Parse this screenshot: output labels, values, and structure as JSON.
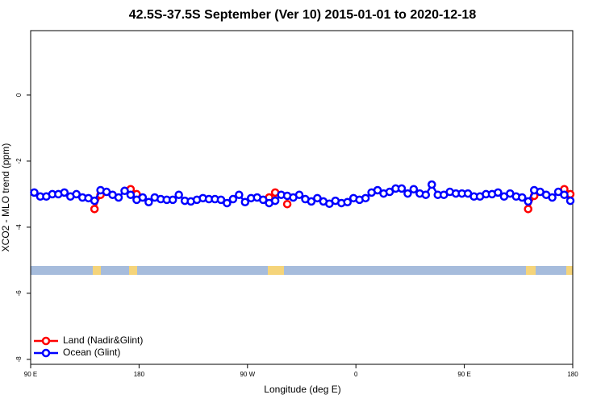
{
  "chart_data": {
    "type": "line",
    "title": "42.5S-37.5S September (Ver 10)   2015-01-01 to 2020-12-18",
    "x_label": "Longitude (deg E)",
    "y_label": "XCO2 - MLO trend (ppm)",
    "xlim": [
      90,
      540
    ],
    "ylim": [
      -8.15,
      1.95
    ],
    "xticks": [
      {
        "value": 90,
        "label": "90 E"
      },
      {
        "value": 180,
        "label": "180"
      },
      {
        "value": 270,
        "label": "90 W"
      },
      {
        "value": 360,
        "label": "0"
      },
      {
        "value": 450,
        "label": "90 E"
      },
      {
        "value": 540,
        "label": "180"
      }
    ],
    "yticks": [
      0,
      -2,
      -4,
      -6,
      -8
    ],
    "legend": "bottom-left",
    "series": [
      {
        "name": "Land (Nadir&Glint)",
        "color": "#ff0000",
        "x": [
          143,
          148,
          null,
          173,
          178,
          null,
          288,
          293,
          null,
          303,
          null,
          503,
          508,
          null,
          533,
          538
        ],
        "values": [
          -3.45,
          -3.02,
          null,
          -2.85,
          -3.0,
          null,
          -3.1,
          -2.95,
          null,
          -3.3,
          null,
          -3.45,
          -3.05,
          null,
          -2.85,
          -3.0
        ]
      },
      {
        "name": "Ocean (Glint)",
        "color": "#0000ff",
        "x": [
          93,
          98,
          103,
          108,
          113,
          118,
          123,
          128,
          133,
          138,
          143,
          148,
          153,
          158,
          163,
          168,
          173,
          178,
          183,
          188,
          193,
          198,
          203,
          208,
          213,
          218,
          223,
          228,
          233,
          238,
          243,
          248,
          253,
          258,
          263,
          268,
          273,
          278,
          283,
          288,
          293,
          298,
          303,
          308,
          313,
          318,
          323,
          328,
          333,
          338,
          343,
          348,
          353,
          358,
          363,
          368,
          373,
          378,
          383,
          388,
          393,
          398,
          403,
          408,
          413,
          418,
          423,
          428,
          433,
          438,
          443,
          448,
          453,
          458,
          463,
          468,
          473,
          478,
          483,
          488,
          493,
          498,
          503,
          508,
          513,
          518,
          523,
          528,
          533,
          538
        ],
        "values": [
          -2.95,
          -3.07,
          -3.07,
          -3.0,
          -3.0,
          -2.95,
          -3.07,
          -3.0,
          -3.1,
          -3.12,
          -3.2,
          -2.88,
          -2.93,
          -3.02,
          -3.1,
          -2.9,
          -3.02,
          -3.17,
          -3.1,
          -3.24,
          -3.1,
          -3.15,
          -3.17,
          -3.17,
          -3.02,
          -3.2,
          -3.22,
          -3.17,
          -3.12,
          -3.15,
          -3.15,
          -3.17,
          -3.27,
          -3.15,
          -3.02,
          -3.24,
          -3.12,
          -3.1,
          -3.17,
          -3.27,
          -3.2,
          -3.02,
          -3.05,
          -3.1,
          -3.02,
          -3.15,
          -3.22,
          -3.12,
          -3.22,
          -3.29,
          -3.2,
          -3.27,
          -3.24,
          -3.12,
          -3.17,
          -3.12,
          -2.95,
          -2.88,
          -2.98,
          -2.93,
          -2.83,
          -2.83,
          -2.98,
          -2.85,
          -2.98,
          -3.02,
          -2.71,
          -3.02,
          -3.02,
          -2.93,
          -2.98,
          -2.98,
          -2.98,
          -3.07,
          -3.07,
          -3.0,
          -3.0,
          -2.95,
          -3.07,
          -2.98,
          -3.07,
          -3.1,
          -3.22,
          -2.88,
          -2.93,
          -3.02,
          -3.1,
          -2.93,
          -3.02,
          -3.2
        ]
      }
    ]
  }
}
